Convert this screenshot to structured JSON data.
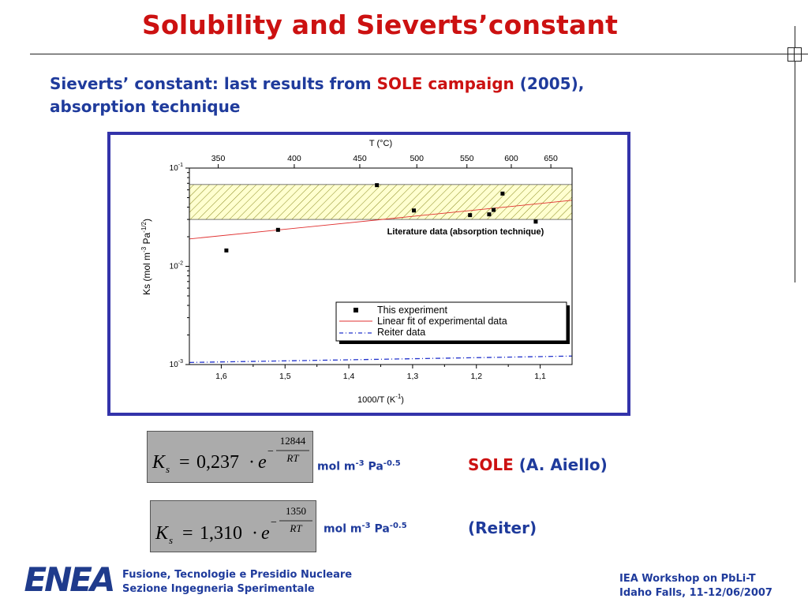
{
  "slide": {
    "title": "Solubility and Sieverts’constant",
    "subtitle_part1": "Sieverts’ constant: last results from ",
    "subtitle_highlight": "SOLE campaign",
    "subtitle_part2": " (2005),",
    "subtitle_line2": "absorption technique"
  },
  "formulas": [
    {
      "lhs_symbol": "K",
      "lhs_subscript": "s",
      "coefficient": "0,237",
      "base": "e",
      "exponent_sign": "−",
      "exponent_numerator": "12844",
      "exponent_denominator": "RT",
      "unit": {
        "prefix": "mol m",
        "exp1": "-3",
        "mid": " Pa",
        "exp2": "-0.5"
      },
      "source_highlight": "SOLE",
      "source_rest": " (A. Aiello)"
    },
    {
      "lhs_symbol": "K",
      "lhs_subscript": "s",
      "coefficient": "1,310",
      "base": "e",
      "exponent_sign": "−",
      "exponent_numerator": "1350",
      "exponent_denominator": "RT",
      "unit": {
        "prefix": "mol m",
        "exp1": "-3",
        "mid": " Pa",
        "exp2": "-0.5"
      },
      "source_highlight": "",
      "source_rest": "(Reiter)"
    }
  ],
  "footer": {
    "left_line1": "Fusione, Tecnologie e Presidio Nucleare",
    "left_line2": "Sezione Ingegneria Sperimentale",
    "right_line1": "IEA Workshop on PbLi-T",
    "right_line2": "Idaho Falls, 11-12/06/2007",
    "logo_text": "ENEA"
  },
  "chart_data": {
    "type": "scatter",
    "x_scale": "1000/T (K^-1), reversed",
    "y_scale": "log",
    "xlabel": "1000/T (K",
    "xlabel_sup": "-1",
    "xlabel_end": ")",
    "top_xlabel": "T (°C)",
    "ylabel": "Ks (mol m",
    "ylabel_sup1": "-3",
    "ylabel_mid": " Pa",
    "ylabel_sup2": "-1/2",
    "ylabel_end": ")",
    "xlim": [
      1.65,
      1.05
    ],
    "ylim": [
      0.001,
      0.1
    ],
    "x_ticks": [
      "1,6",
      "1,5",
      "1,4",
      "1,3",
      "1,2",
      "1,1"
    ],
    "x_tick_values": [
      1.6,
      1.5,
      1.4,
      1.3,
      1.2,
      1.1
    ],
    "top_ticks": [
      "350",
      "400",
      "450",
      "500",
      "550",
      "600",
      "650"
    ],
    "top_tick_values_c": [
      350,
      400,
      450,
      500,
      550,
      600,
      650
    ],
    "y_ticks": [
      {
        "base": "10",
        "exp": "-1",
        "value": 0.1
      },
      {
        "base": "10",
        "exp": "-2",
        "value": 0.01
      },
      {
        "base": "10",
        "exp": "-3",
        "value": 0.001
      }
    ],
    "band": {
      "label": "Literature data (absorption technique)",
      "y_low": 0.03,
      "y_high": 0.068
    },
    "series": [
      {
        "name": "This experiment",
        "color": "#000000",
        "points": [
          {
            "x": 1.592,
            "y": 0.0145
          },
          {
            "x": 1.511,
            "y": 0.0235
          },
          {
            "x": 1.356,
            "y": 0.067
          },
          {
            "x": 1.298,
            "y": 0.037
          },
          {
            "x": 1.21,
            "y": 0.0332
          },
          {
            "x": 1.18,
            "y": 0.0338
          },
          {
            "x": 1.173,
            "y": 0.0375
          },
          {
            "x": 1.159,
            "y": 0.055
          },
          {
            "x": 1.107,
            "y": 0.0285
          }
        ]
      },
      {
        "name": "Linear fit of experimental data",
        "color": "#e03030",
        "line": [
          {
            "x": 1.65,
            "y": 0.019
          },
          {
            "x": 1.05,
            "y": 0.047
          }
        ]
      },
      {
        "name": "Reiter data",
        "color": "#2233cc",
        "line": [
          {
            "x": 1.65,
            "y": 0.00105
          },
          {
            "x": 1.05,
            "y": 0.00122
          }
        ]
      }
    ]
  }
}
